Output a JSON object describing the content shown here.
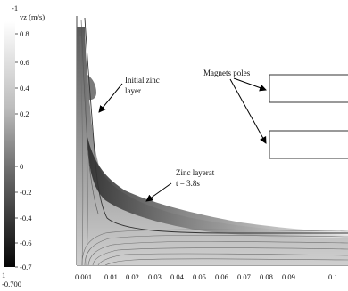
{
  "figure": {
    "colorbar": {
      "top_label": "-1",
      "quantity_label": "vz (m/s)",
      "tick_labels": [
        "0.8",
        "0.6",
        "0.4",
        "0.2",
        "0",
        "-0.2",
        "-0.4",
        "-0.6",
        "-0.7"
      ],
      "bottom_marker": "1",
      "bottom_label": "-0.700"
    },
    "x_axis": {
      "tick_labels": [
        "0.001",
        "0.01",
        "0.02",
        "0.03",
        "0.04",
        "0.05",
        "0.06",
        "0.07",
        "0.08",
        "0.09",
        "0.1"
      ]
    },
    "annotations": {
      "initial_zinc_line1": "Initial zinc",
      "initial_zinc_line2": "layer",
      "magnets_poles": "Magnets poles",
      "zinc_layer_line1": "Zinc layerat",
      "zinc_layer_line2": "t = 3.8s"
    }
  }
}
